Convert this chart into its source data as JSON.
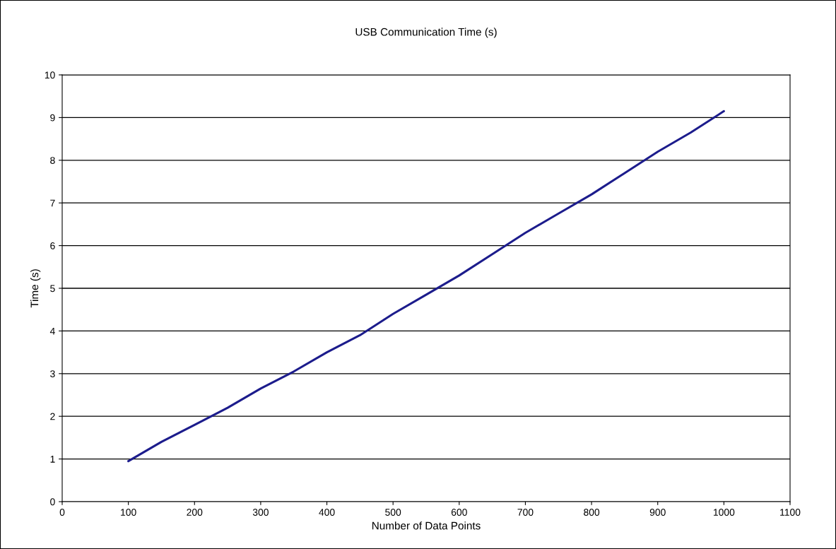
{
  "chart_data": {
    "type": "line",
    "title": "USB Communication Time (s)",
    "xlabel": "Number of Data Points",
    "ylabel": "Time (s)",
    "x": [
      100,
      150,
      200,
      250,
      300,
      350,
      400,
      450,
      500,
      550,
      600,
      650,
      700,
      750,
      800,
      850,
      900,
      950,
      1000
    ],
    "series": [
      {
        "color": "#1c1c8c",
        "values": [
          0.95,
          1.4,
          1.8,
          2.2,
          2.65,
          3.05,
          3.5,
          3.9,
          4.4,
          4.85,
          5.3,
          5.8,
          6.3,
          6.75,
          7.2,
          7.7,
          8.2,
          8.65,
          9.15
        ]
      }
    ],
    "xlim": [
      0,
      1100
    ],
    "xticks": [
      0,
      100,
      200,
      300,
      400,
      500,
      600,
      700,
      800,
      900,
      1000,
      1100
    ],
    "ylim": [
      0,
      10
    ],
    "yticks": [
      0,
      1,
      2,
      3,
      4,
      5,
      6,
      7,
      8,
      9,
      10
    ],
    "grid": "y",
    "legend": false,
    "marker": "none",
    "line_style": "solid"
  }
}
